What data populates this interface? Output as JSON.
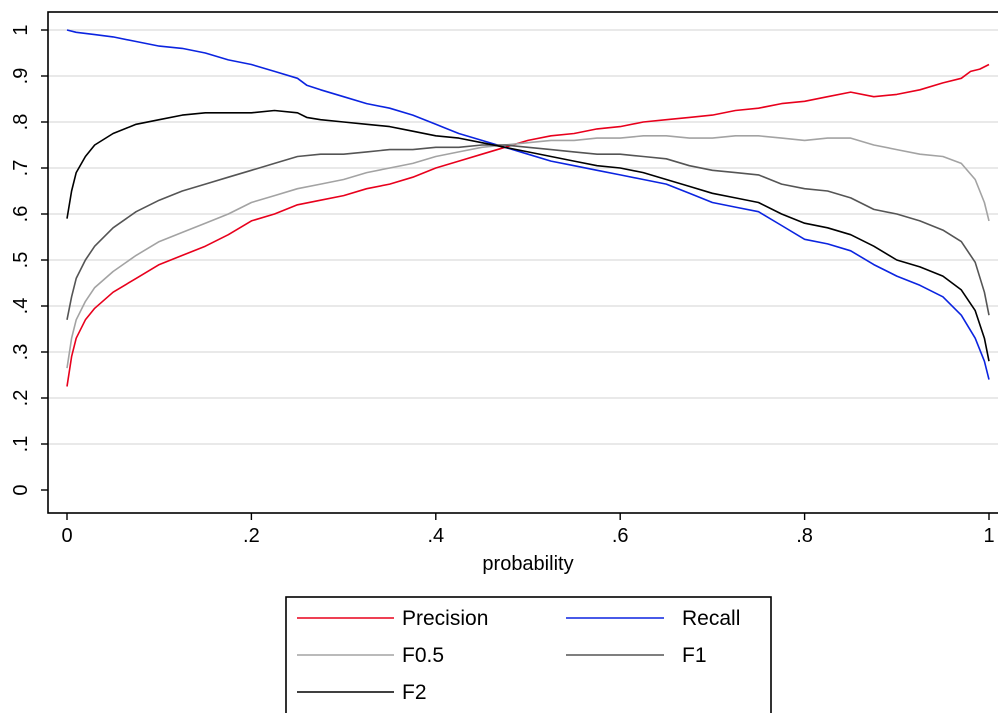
{
  "chart_data": {
    "type": "line",
    "xlabel": "probability",
    "ylabel": "",
    "xlim": [
      0,
      1
    ],
    "ylim": [
      0,
      1
    ],
    "grid": true,
    "legend_position": "bottom",
    "x_ticks": [
      {
        "value": 0,
        "label": "0"
      },
      {
        "value": 0.2,
        "label": ".2"
      },
      {
        "value": 0.4,
        "label": ".4"
      },
      {
        "value": 0.6,
        "label": ".6"
      },
      {
        "value": 0.8,
        "label": ".8"
      },
      {
        "value": 1,
        "label": "1"
      }
    ],
    "y_ticks": [
      {
        "value": 0,
        "label": "0"
      },
      {
        "value": 0.1,
        "label": ".1"
      },
      {
        "value": 0.2,
        "label": ".2"
      },
      {
        "value": 0.3,
        "label": ".3"
      },
      {
        "value": 0.4,
        "label": ".4"
      },
      {
        "value": 0.5,
        "label": ".5"
      },
      {
        "value": 0.6,
        "label": ".6"
      },
      {
        "value": 0.7,
        "label": ".7"
      },
      {
        "value": 0.8,
        "label": ".8"
      },
      {
        "value": 0.9,
        "label": ".9"
      },
      {
        "value": 1,
        "label": "1"
      }
    ],
    "series": [
      {
        "name": "Precision",
        "color": "#e8001c",
        "points": [
          [
            0,
            0.225
          ],
          [
            0.005,
            0.29
          ],
          [
            0.01,
            0.33
          ],
          [
            0.02,
            0.37
          ],
          [
            0.03,
            0.395
          ],
          [
            0.05,
            0.43
          ],
          [
            0.075,
            0.46
          ],
          [
            0.1,
            0.49
          ],
          [
            0.125,
            0.51
          ],
          [
            0.15,
            0.53
          ],
          [
            0.175,
            0.555
          ],
          [
            0.2,
            0.585
          ],
          [
            0.225,
            0.6
          ],
          [
            0.25,
            0.62
          ],
          [
            0.275,
            0.63
          ],
          [
            0.3,
            0.64
          ],
          [
            0.325,
            0.655
          ],
          [
            0.35,
            0.665
          ],
          [
            0.375,
            0.68
          ],
          [
            0.4,
            0.7
          ],
          [
            0.425,
            0.715
          ],
          [
            0.45,
            0.73
          ],
          [
            0.475,
            0.745
          ],
          [
            0.5,
            0.76
          ],
          [
            0.525,
            0.77
          ],
          [
            0.55,
            0.775
          ],
          [
            0.575,
            0.785
          ],
          [
            0.6,
            0.79
          ],
          [
            0.625,
            0.8
          ],
          [
            0.65,
            0.805
          ],
          [
            0.675,
            0.81
          ],
          [
            0.7,
            0.815
          ],
          [
            0.725,
            0.825
          ],
          [
            0.75,
            0.83
          ],
          [
            0.775,
            0.84
          ],
          [
            0.8,
            0.845
          ],
          [
            0.825,
            0.855
          ],
          [
            0.85,
            0.865
          ],
          [
            0.875,
            0.855
          ],
          [
            0.9,
            0.86
          ],
          [
            0.925,
            0.87
          ],
          [
            0.95,
            0.885
          ],
          [
            0.97,
            0.895
          ],
          [
            0.98,
            0.91
          ],
          [
            0.99,
            0.915
          ],
          [
            1.0,
            0.925
          ]
        ]
      },
      {
        "name": "Recall",
        "color": "#0b24e0",
        "points": [
          [
            0,
            1.0
          ],
          [
            0.01,
            0.995
          ],
          [
            0.03,
            0.99
          ],
          [
            0.05,
            0.985
          ],
          [
            0.075,
            0.975
          ],
          [
            0.1,
            0.965
          ],
          [
            0.125,
            0.96
          ],
          [
            0.15,
            0.95
          ],
          [
            0.175,
            0.935
          ],
          [
            0.2,
            0.925
          ],
          [
            0.225,
            0.91
          ],
          [
            0.25,
            0.895
          ],
          [
            0.26,
            0.88
          ],
          [
            0.275,
            0.87
          ],
          [
            0.3,
            0.855
          ],
          [
            0.325,
            0.84
          ],
          [
            0.35,
            0.83
          ],
          [
            0.375,
            0.815
          ],
          [
            0.4,
            0.795
          ],
          [
            0.425,
            0.775
          ],
          [
            0.45,
            0.76
          ],
          [
            0.475,
            0.745
          ],
          [
            0.5,
            0.73
          ],
          [
            0.525,
            0.715
          ],
          [
            0.55,
            0.705
          ],
          [
            0.575,
            0.695
          ],
          [
            0.6,
            0.685
          ],
          [
            0.625,
            0.675
          ],
          [
            0.65,
            0.665
          ],
          [
            0.675,
            0.645
          ],
          [
            0.7,
            0.625
          ],
          [
            0.725,
            0.615
          ],
          [
            0.75,
            0.605
          ],
          [
            0.775,
            0.575
          ],
          [
            0.8,
            0.545
          ],
          [
            0.825,
            0.535
          ],
          [
            0.85,
            0.52
          ],
          [
            0.875,
            0.49
          ],
          [
            0.9,
            0.465
          ],
          [
            0.925,
            0.445
          ],
          [
            0.95,
            0.42
          ],
          [
            0.97,
            0.38
          ],
          [
            0.985,
            0.33
          ],
          [
            0.995,
            0.28
          ],
          [
            1.0,
            0.24
          ]
        ]
      },
      {
        "name": "F0.5",
        "color": "#a3a3a3",
        "points": [
          [
            0,
            0.265
          ],
          [
            0.005,
            0.33
          ],
          [
            0.01,
            0.37
          ],
          [
            0.02,
            0.41
          ],
          [
            0.03,
            0.44
          ],
          [
            0.05,
            0.475
          ],
          [
            0.075,
            0.51
          ],
          [
            0.1,
            0.54
          ],
          [
            0.125,
            0.56
          ],
          [
            0.15,
            0.58
          ],
          [
            0.175,
            0.6
          ],
          [
            0.2,
            0.625
          ],
          [
            0.225,
            0.64
          ],
          [
            0.25,
            0.655
          ],
          [
            0.275,
            0.665
          ],
          [
            0.3,
            0.675
          ],
          [
            0.325,
            0.69
          ],
          [
            0.35,
            0.7
          ],
          [
            0.375,
            0.71
          ],
          [
            0.4,
            0.725
          ],
          [
            0.425,
            0.735
          ],
          [
            0.45,
            0.745
          ],
          [
            0.475,
            0.75
          ],
          [
            0.5,
            0.755
          ],
          [
            0.525,
            0.76
          ],
          [
            0.55,
            0.76
          ],
          [
            0.575,
            0.765
          ],
          [
            0.6,
            0.765
          ],
          [
            0.625,
            0.77
          ],
          [
            0.65,
            0.77
          ],
          [
            0.675,
            0.765
          ],
          [
            0.7,
            0.765
          ],
          [
            0.725,
            0.77
          ],
          [
            0.75,
            0.77
          ],
          [
            0.775,
            0.765
          ],
          [
            0.8,
            0.76
          ],
          [
            0.825,
            0.765
          ],
          [
            0.85,
            0.765
          ],
          [
            0.875,
            0.75
          ],
          [
            0.9,
            0.74
          ],
          [
            0.925,
            0.73
          ],
          [
            0.95,
            0.725
          ],
          [
            0.97,
            0.71
          ],
          [
            0.985,
            0.675
          ],
          [
            0.995,
            0.625
          ],
          [
            1.0,
            0.585
          ]
        ]
      },
      {
        "name": "F1",
        "color": "#555555",
        "points": [
          [
            0,
            0.37
          ],
          [
            0.005,
            0.42
          ],
          [
            0.01,
            0.46
          ],
          [
            0.02,
            0.5
          ],
          [
            0.03,
            0.53
          ],
          [
            0.05,
            0.57
          ],
          [
            0.075,
            0.605
          ],
          [
            0.1,
            0.63
          ],
          [
            0.125,
            0.65
          ],
          [
            0.15,
            0.665
          ],
          [
            0.175,
            0.68
          ],
          [
            0.2,
            0.695
          ],
          [
            0.225,
            0.71
          ],
          [
            0.25,
            0.725
          ],
          [
            0.275,
            0.73
          ],
          [
            0.3,
            0.73
          ],
          [
            0.325,
            0.735
          ],
          [
            0.35,
            0.74
          ],
          [
            0.375,
            0.74
          ],
          [
            0.4,
            0.745
          ],
          [
            0.425,
            0.745
          ],
          [
            0.45,
            0.75
          ],
          [
            0.475,
            0.75
          ],
          [
            0.5,
            0.745
          ],
          [
            0.525,
            0.74
          ],
          [
            0.55,
            0.735
          ],
          [
            0.575,
            0.73
          ],
          [
            0.6,
            0.73
          ],
          [
            0.625,
            0.725
          ],
          [
            0.65,
            0.72
          ],
          [
            0.675,
            0.705
          ],
          [
            0.7,
            0.695
          ],
          [
            0.725,
            0.69
          ],
          [
            0.75,
            0.685
          ],
          [
            0.775,
            0.665
          ],
          [
            0.8,
            0.655
          ],
          [
            0.825,
            0.65
          ],
          [
            0.85,
            0.635
          ],
          [
            0.875,
            0.61
          ],
          [
            0.9,
            0.6
          ],
          [
            0.925,
            0.585
          ],
          [
            0.95,
            0.565
          ],
          [
            0.97,
            0.54
          ],
          [
            0.985,
            0.495
          ],
          [
            0.995,
            0.43
          ],
          [
            1.0,
            0.38
          ]
        ]
      },
      {
        "name": "F2",
        "color": "#000000",
        "points": [
          [
            0,
            0.59
          ],
          [
            0.005,
            0.65
          ],
          [
            0.01,
            0.69
          ],
          [
            0.02,
            0.725
          ],
          [
            0.03,
            0.75
          ],
          [
            0.05,
            0.775
          ],
          [
            0.075,
            0.795
          ],
          [
            0.1,
            0.805
          ],
          [
            0.125,
            0.815
          ],
          [
            0.15,
            0.82
          ],
          [
            0.175,
            0.82
          ],
          [
            0.2,
            0.82
          ],
          [
            0.225,
            0.825
          ],
          [
            0.25,
            0.82
          ],
          [
            0.26,
            0.81
          ],
          [
            0.275,
            0.805
          ],
          [
            0.3,
            0.8
          ],
          [
            0.325,
            0.795
          ],
          [
            0.35,
            0.79
          ],
          [
            0.375,
            0.78
          ],
          [
            0.4,
            0.77
          ],
          [
            0.425,
            0.765
          ],
          [
            0.45,
            0.755
          ],
          [
            0.475,
            0.745
          ],
          [
            0.5,
            0.735
          ],
          [
            0.525,
            0.725
          ],
          [
            0.55,
            0.715
          ],
          [
            0.575,
            0.705
          ],
          [
            0.6,
            0.7
          ],
          [
            0.625,
            0.69
          ],
          [
            0.65,
            0.675
          ],
          [
            0.675,
            0.66
          ],
          [
            0.7,
            0.645
          ],
          [
            0.725,
            0.635
          ],
          [
            0.75,
            0.625
          ],
          [
            0.775,
            0.6
          ],
          [
            0.8,
            0.58
          ],
          [
            0.825,
            0.57
          ],
          [
            0.85,
            0.555
          ],
          [
            0.875,
            0.53
          ],
          [
            0.9,
            0.5
          ],
          [
            0.925,
            0.485
          ],
          [
            0.95,
            0.465
          ],
          [
            0.97,
            0.435
          ],
          [
            0.985,
            0.39
          ],
          [
            0.995,
            0.33
          ],
          [
            1.0,
            0.28
          ]
        ]
      }
    ]
  }
}
